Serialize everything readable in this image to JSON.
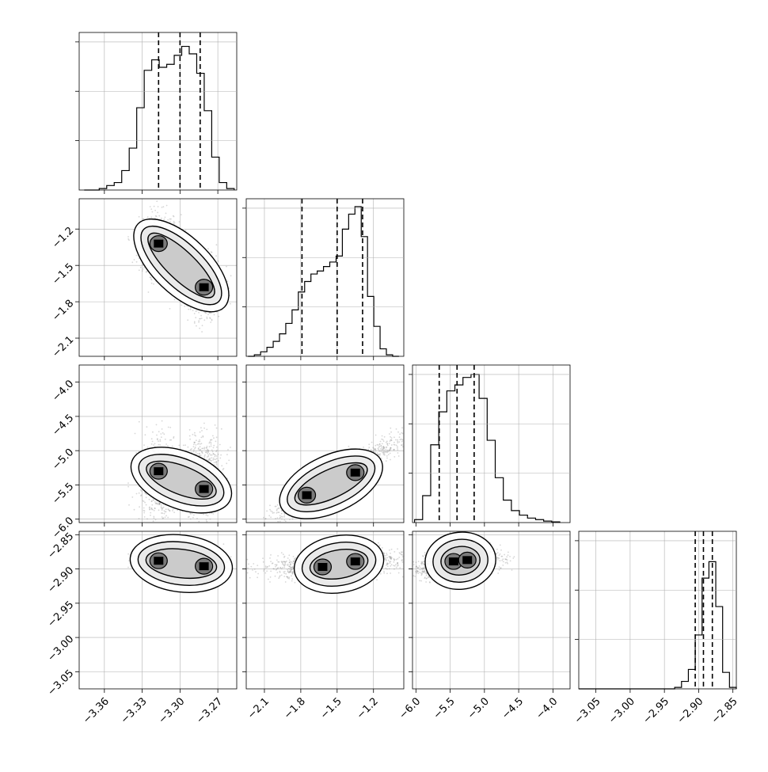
{
  "chart_data": {
    "type": "corner",
    "title": "",
    "params": [
      {
        "range": [
          -3.38,
          -3.255
        ],
        "ticks": [
          -3.36,
          -3.33,
          -3.3,
          -3.27
        ],
        "tick_labels": [
          "−3.36",
          "−3.33",
          "−3.30",
          "−3.27"
        ],
        "quantiles": [
          -3.317,
          -3.3,
          -3.284
        ]
      },
      {
        "range": [
          -2.25,
          -0.95
        ],
        "ticks": [
          -2.1,
          -1.8,
          -1.5,
          -1.2
        ],
        "tick_labels": [
          "−2.1",
          "−1.8",
          "−1.5",
          "−1.2"
        ],
        "quantiles": [
          -1.79,
          -1.5,
          -1.29
        ]
      },
      {
        "range": [
          -6.05,
          -3.75
        ],
        "ticks": [
          -6.0,
          -5.5,
          -5.0,
          -4.5,
          -4.0
        ],
        "tick_labels": [
          "−6.0",
          "−5.5",
          "−5.0",
          "−4.5",
          "−4.0"
        ],
        "quantiles": [
          -5.66,
          -5.4,
          -5.15
        ]
      },
      {
        "range": [
          -3.075,
          -2.845
        ],
        "ticks": [
          -3.05,
          -3.0,
          -2.95,
          -2.9,
          -2.85
        ],
        "tick_labels": [
          "−3.05",
          "−3.00",
          "−2.95",
          "−2.90",
          "−2.85"
        ],
        "quantiles": [
          -2.905,
          -2.893,
          -2.88
        ]
      }
    ],
    "histograms": [
      {
        "param": 0,
        "heights": [
          0,
          0,
          0.01,
          0.03,
          0.05,
          0.13,
          0.28,
          0.55,
          0.8,
          0.87,
          0.82,
          0.84,
          0.9,
          0.96,
          0.91,
          0.78,
          0.53,
          0.22,
          0.05,
          0.01
        ]
      },
      {
        "param": 1,
        "heights": [
          0,
          0.01,
          0.03,
          0.06,
          0.1,
          0.15,
          0.22,
          0.31,
          0.43,
          0.5,
          0.55,
          0.57,
          0.6,
          0.63,
          0.67,
          0.85,
          0.95,
          1.0,
          0.8,
          0.4,
          0.2,
          0.05,
          0.01,
          0
        ]
      },
      {
        "param": 2,
        "heights": [
          0.02,
          0.18,
          0.52,
          0.74,
          0.88,
          0.92,
          0.97,
          0.99,
          0.83,
          0.55,
          0.3,
          0.15,
          0.08,
          0.05,
          0.03,
          0.02,
          0.01,
          0.005
        ]
      },
      {
        "param": 3,
        "heights": [
          0,
          0,
          0,
          0,
          0,
          0,
          0,
          0,
          0,
          0,
          0,
          0,
          0,
          0,
          0.01,
          0.05,
          0.13,
          0.36,
          0.74,
          0.85,
          0.55,
          0.11,
          0.01
        ]
      }
    ],
    "histogram_bin_ranges": [
      [
        -3.376,
        -3.257
      ],
      [
        -2.235,
        -0.99
      ],
      [
        -6.02,
        -3.9
      ],
      [
        -3.075,
        -2.845
      ]
    ],
    "scatter_samples": 1600,
    "density_modes": [
      {
        "x": 0,
        "y": 1,
        "centers": [
          [
            -3.317,
            -1.32
          ],
          [
            -3.281,
            -1.68
          ]
        ]
      },
      {
        "x": 0,
        "y": 2,
        "centers": [
          [
            -3.317,
            -5.3
          ],
          [
            -3.281,
            -5.56
          ]
        ]
      },
      {
        "x": 0,
        "y": 3,
        "centers": [
          [
            -3.317,
            -2.888
          ],
          [
            -3.281,
            -2.896
          ]
        ]
      },
      {
        "x": 1,
        "y": 2,
        "centers": [
          [
            -1.75,
            -5.65
          ],
          [
            -1.35,
            -5.32
          ]
        ]
      },
      {
        "x": 1,
        "y": 3,
        "centers": [
          [
            -1.62,
            -2.897
          ],
          [
            -1.35,
            -2.889
          ]
        ]
      },
      {
        "x": 2,
        "y": 3,
        "centers": [
          [
            -5.45,
            -2.889
          ],
          [
            -5.25,
            -2.887
          ]
        ]
      }
    ],
    "grid": true,
    "colors": {
      "line": "#000000",
      "scatter": "#8c8c8c",
      "grid": "#b0b0b0"
    }
  }
}
